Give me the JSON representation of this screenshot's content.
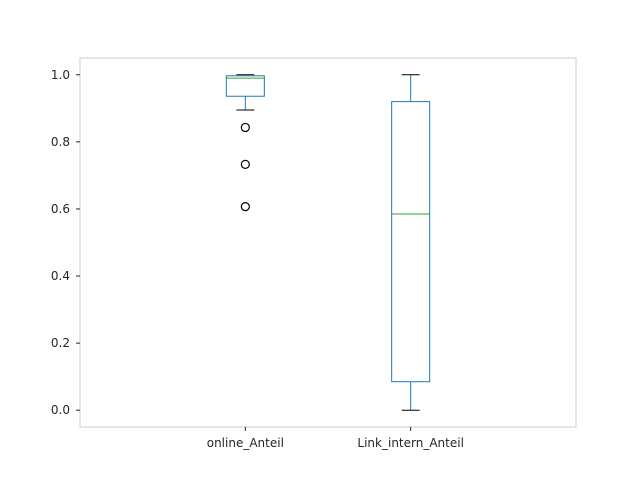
{
  "chart_data": {
    "type": "box",
    "title": "",
    "xlabel": "",
    "ylabel": "",
    "ylim": [
      -0.05,
      1.05
    ],
    "yticks": [
      0.0,
      0.2,
      0.4,
      0.6,
      0.8,
      1.0
    ],
    "ytick_labels": [
      "0.0",
      "0.2",
      "0.4",
      "0.6",
      "0.8",
      "1.0"
    ],
    "grid": false,
    "categories": [
      "online_Anteil",
      "Link_intern_Anteil"
    ],
    "boxes": [
      {
        "category": "online_Anteil",
        "whisker_low": 0.895,
        "q1": 0.936,
        "median": 0.99,
        "q3": 0.997,
        "whisker_high": 1.0,
        "outliers": [
          0.843,
          0.733,
          0.607
        ]
      },
      {
        "category": "Link_intern_Anteil",
        "whisker_low": 0.0,
        "q1": 0.085,
        "median": 0.585,
        "q3": 0.92,
        "whisker_high": 1.0,
        "outliers": []
      }
    ],
    "colors": {
      "box": "#1f77b4",
      "median": "#2ca02c",
      "whisker_cap": "#000000",
      "outlier": "#000000",
      "frame": "#cccccc"
    }
  }
}
